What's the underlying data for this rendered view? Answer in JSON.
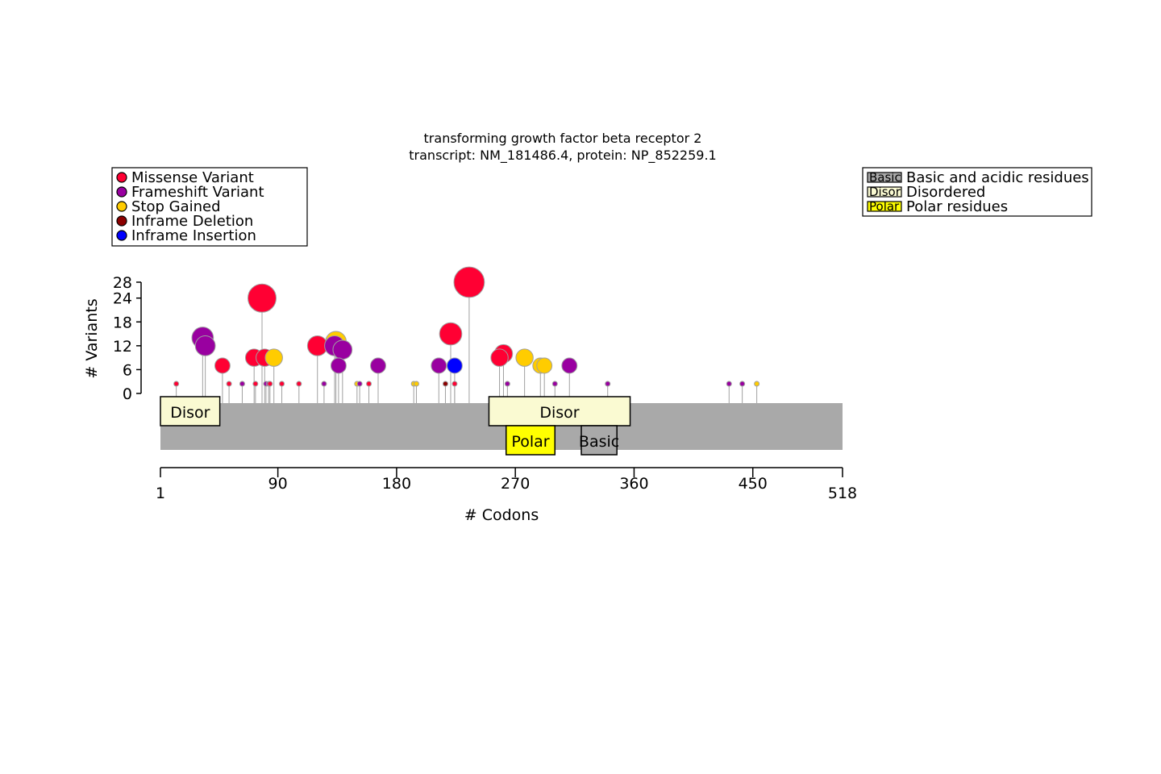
{
  "title": "transforming growth factor beta receptor 2",
  "subtitle": "transcript: NM_181486.4, protein: NP_852259.1",
  "variant_legend": [
    {
      "label": "Missense Variant",
      "color": "#FF0033",
      "key": "missense"
    },
    {
      "label": "Frameshift Variant",
      "color": "#9900A0",
      "key": "frameshift"
    },
    {
      "label": "Stop Gained",
      "color": "#FFCC00",
      "key": "stop"
    },
    {
      "label": "Inframe Deletion",
      "color": "#8B0000",
      "key": "indel_del"
    },
    {
      "label": "Inframe Insertion",
      "color": "#0000FF",
      "key": "indel_ins"
    }
  ],
  "domain_legend": [
    {
      "abbr": "Basic",
      "label": "Basic and acidic residues",
      "color": "#A9A9A9"
    },
    {
      "abbr": "Disor",
      "label": "Disordered",
      "color": "#FAFAD2"
    },
    {
      "abbr": "Polar",
      "label": "Polar residues",
      "color": "#FFFF00"
    }
  ],
  "chart_data": {
    "type": "scatter",
    "subtype": "lollipop",
    "protein_length": 518,
    "xlabel": "# Codons",
    "ylabel": "# Variants",
    "xticks": [
      1,
      90,
      180,
      270,
      360,
      450,
      518
    ],
    "yticks": [
      0,
      6,
      12,
      18,
      24,
      28
    ],
    "xlim": [
      1,
      518
    ],
    "ylim": [
      0,
      28
    ],
    "protein_bar_color": "#A9A9A9",
    "domains": [
      {
        "label": "Disor",
        "start": 1,
        "end": 46,
        "color": "#FAFAD2",
        "row": "top"
      },
      {
        "label": "Disor",
        "start": 250,
        "end": 357,
        "color": "#FAFAD2",
        "row": "top"
      },
      {
        "label": "Polar",
        "start": 263,
        "end": 300,
        "color": "#FFFF00",
        "row": "bottom"
      },
      {
        "label": "Basic",
        "start": 320,
        "end": 347,
        "color": "#A9A9A9",
        "row": "bottom"
      }
    ],
    "variants": [
      {
        "pos": 13,
        "count": 1,
        "type": "missense"
      },
      {
        "pos": 33,
        "count": 14,
        "type": "frameshift"
      },
      {
        "pos": 35,
        "count": 12,
        "type": "frameshift"
      },
      {
        "pos": 48,
        "count": 7,
        "type": "missense"
      },
      {
        "pos": 53,
        "count": 1,
        "type": "missense"
      },
      {
        "pos": 63,
        "count": 1,
        "type": "frameshift"
      },
      {
        "pos": 72,
        "count": 9,
        "type": "missense"
      },
      {
        "pos": 73,
        "count": 1,
        "type": "missense"
      },
      {
        "pos": 78,
        "count": 24,
        "type": "missense"
      },
      {
        "pos": 80,
        "count": 9,
        "type": "missense"
      },
      {
        "pos": 81,
        "count": 1,
        "type": "frameshift"
      },
      {
        "pos": 83,
        "count": 1,
        "type": "frameshift"
      },
      {
        "pos": 84,
        "count": 1,
        "type": "missense"
      },
      {
        "pos": 87,
        "count": 9,
        "type": "stop"
      },
      {
        "pos": 93,
        "count": 1,
        "type": "missense"
      },
      {
        "pos": 106,
        "count": 1,
        "type": "missense"
      },
      {
        "pos": 120,
        "count": 12,
        "type": "missense"
      },
      {
        "pos": 125,
        "count": 1,
        "type": "frameshift"
      },
      {
        "pos": 133,
        "count": 12,
        "type": "frameshift"
      },
      {
        "pos": 134,
        "count": 13,
        "type": "stop"
      },
      {
        "pos": 136,
        "count": 7,
        "type": "frameshift"
      },
      {
        "pos": 139,
        "count": 11,
        "type": "frameshift"
      },
      {
        "pos": 150,
        "count": 1,
        "type": "stop"
      },
      {
        "pos": 152,
        "count": 1,
        "type": "frameshift"
      },
      {
        "pos": 159,
        "count": 1,
        "type": "missense"
      },
      {
        "pos": 166,
        "count": 7,
        "type": "frameshift"
      },
      {
        "pos": 193,
        "count": 1,
        "type": "stop"
      },
      {
        "pos": 195,
        "count": 1,
        "type": "stop"
      },
      {
        "pos": 212,
        "count": 7,
        "type": "frameshift"
      },
      {
        "pos": 217,
        "count": 1,
        "type": "indel_del"
      },
      {
        "pos": 221,
        "count": 15,
        "type": "missense"
      },
      {
        "pos": 224,
        "count": 7,
        "type": "indel_ins"
      },
      {
        "pos": 224,
        "count": 1,
        "type": "missense"
      },
      {
        "pos": 235,
        "count": 28,
        "type": "missense"
      },
      {
        "pos": 258,
        "count": 9,
        "type": "missense"
      },
      {
        "pos": 261,
        "count": 10,
        "type": "missense"
      },
      {
        "pos": 264,
        "count": 1,
        "type": "frameshift"
      },
      {
        "pos": 277,
        "count": 9,
        "type": "stop"
      },
      {
        "pos": 289,
        "count": 7,
        "type": "stop"
      },
      {
        "pos": 292,
        "count": 7,
        "type": "stop"
      },
      {
        "pos": 300,
        "count": 1,
        "type": "frameshift"
      },
      {
        "pos": 311,
        "count": 7,
        "type": "frameshift"
      },
      {
        "pos": 340,
        "count": 1,
        "type": "frameshift"
      },
      {
        "pos": 432,
        "count": 1,
        "type": "frameshift"
      },
      {
        "pos": 442,
        "count": 1,
        "type": "frameshift"
      },
      {
        "pos": 453,
        "count": 1,
        "type": "stop"
      }
    ]
  }
}
